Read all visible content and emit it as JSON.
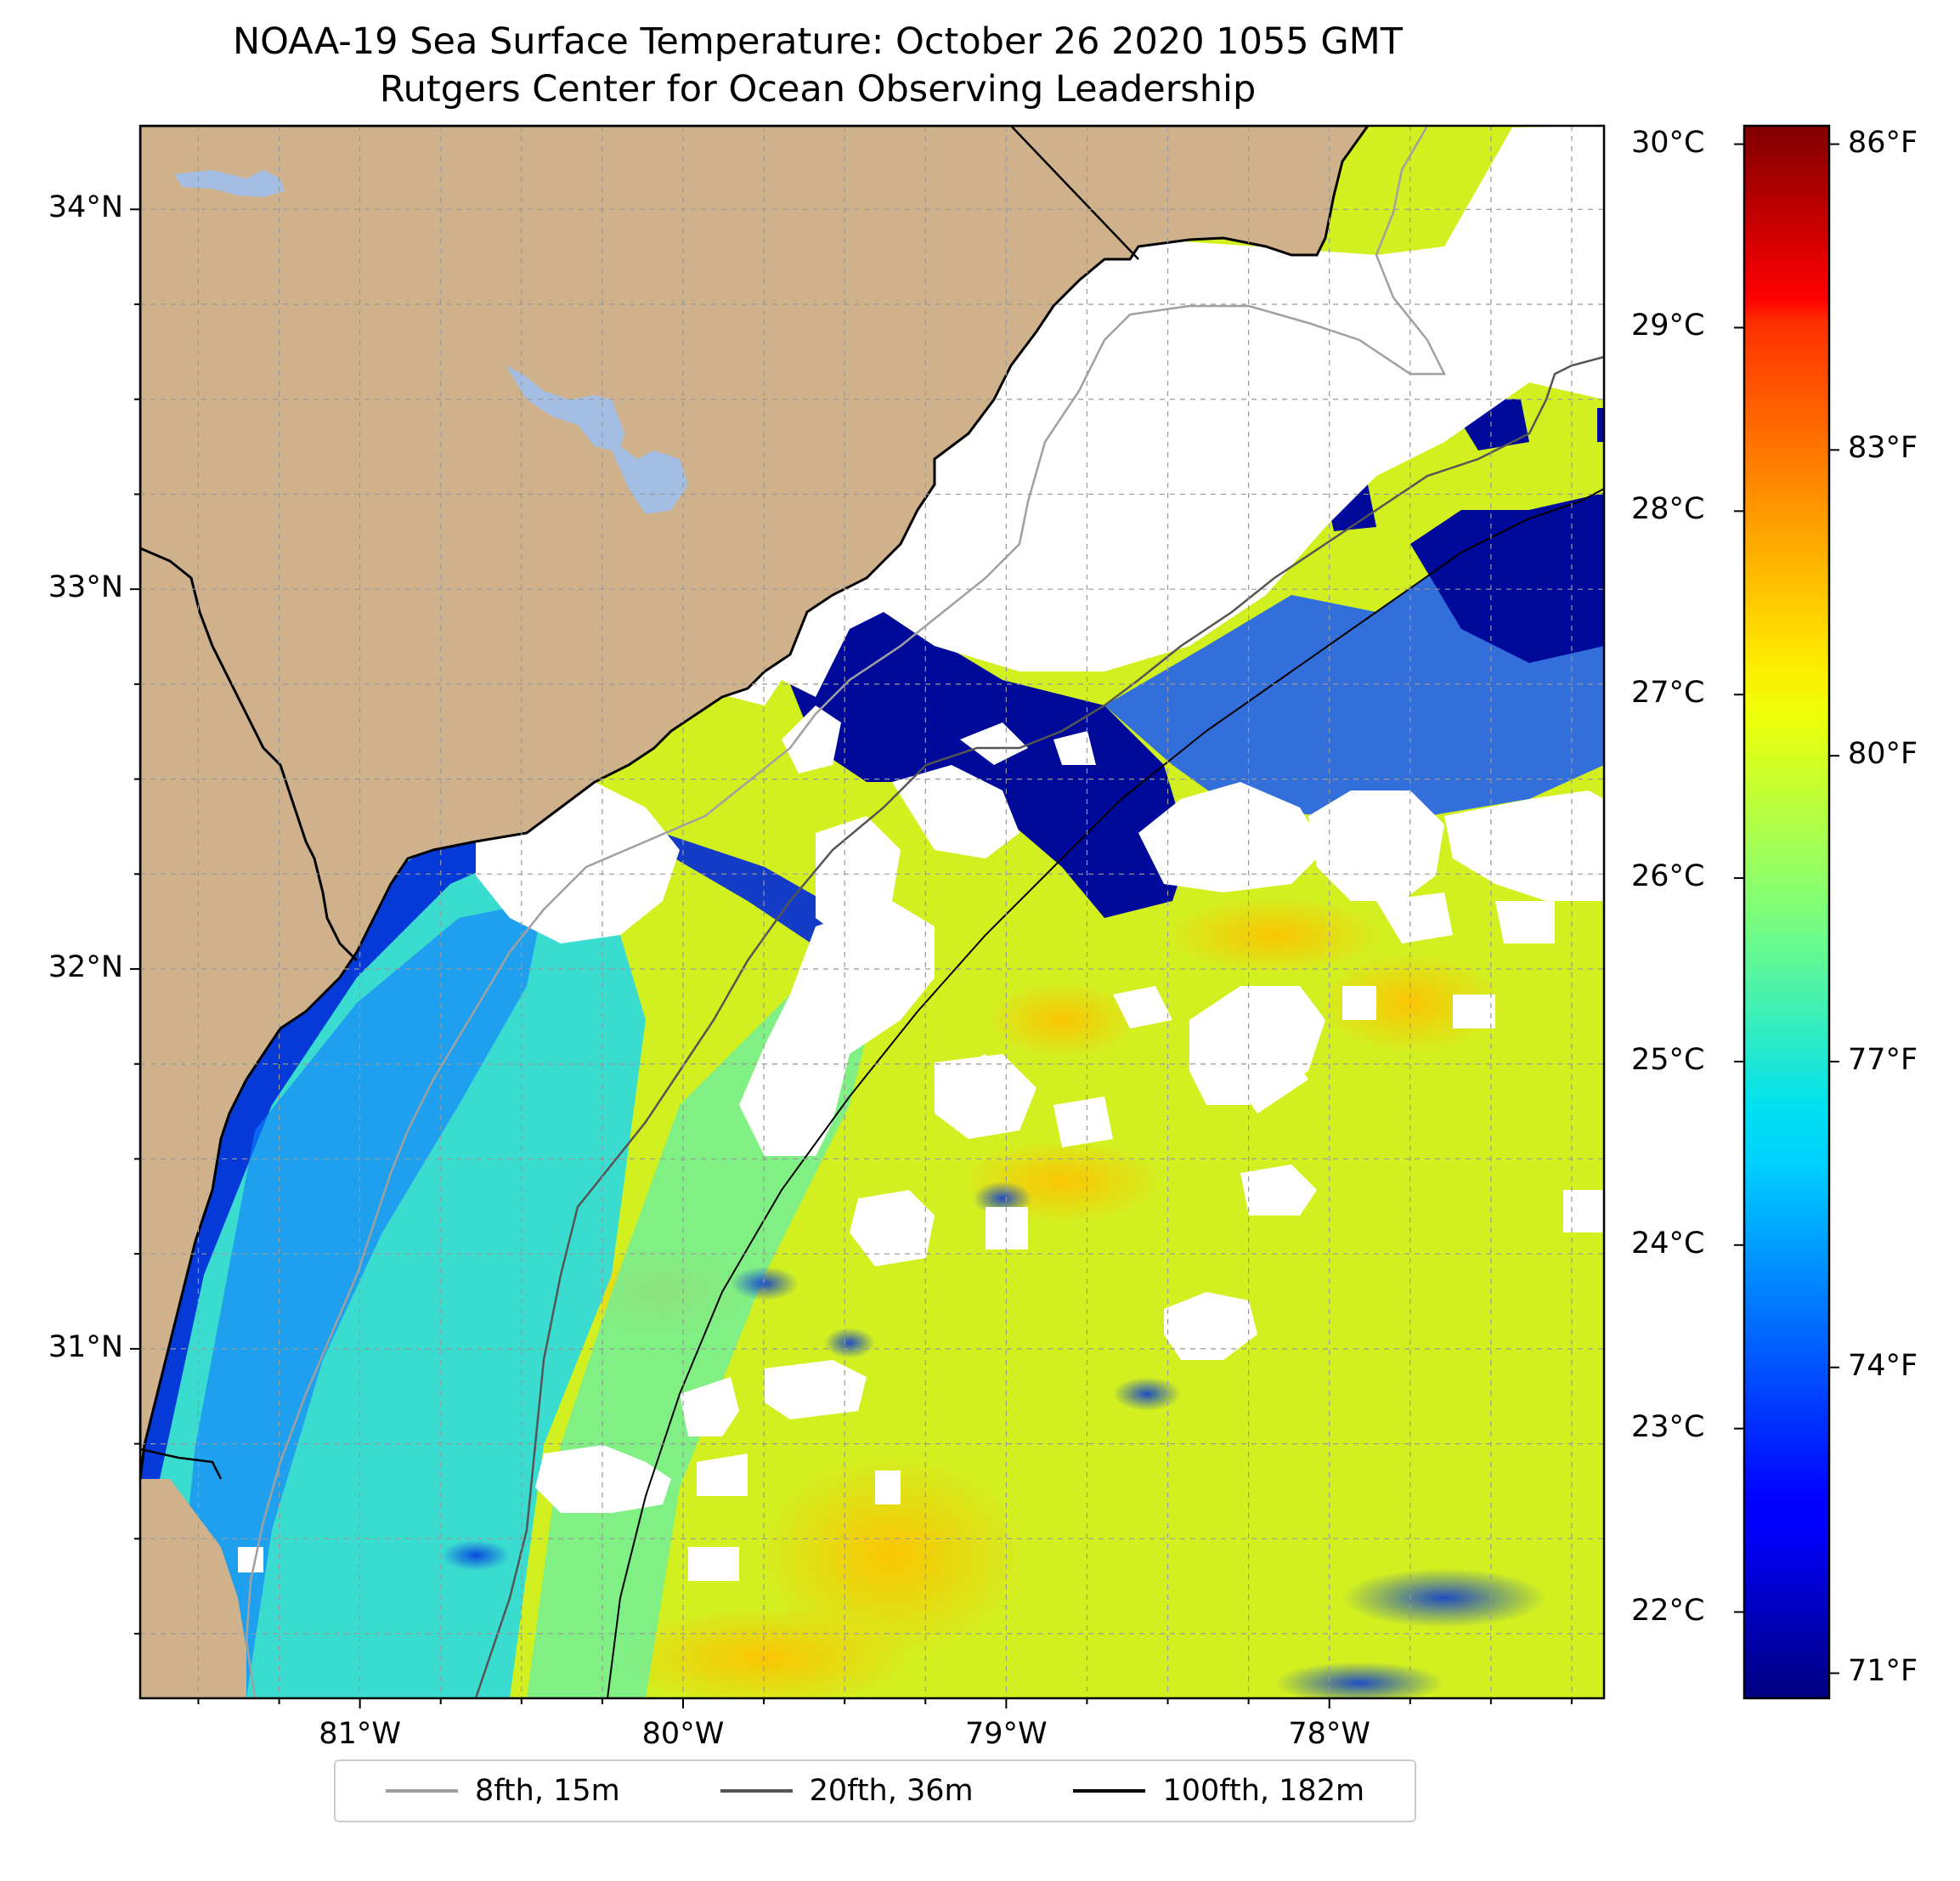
{
  "title": {
    "line1": "NOAA-19 Sea Surface Temperature: October 26 2020 1055 GMT",
    "line2": "Rutgers Center for Ocean Observing Leadership"
  },
  "map": {
    "extent": {
      "lon_min": -81.68,
      "lon_max": -77.15,
      "lat_min": 30.08,
      "lat_max": 34.22
    },
    "lat_ticks": [
      {
        "value": 34,
        "label": "34°N"
      },
      {
        "value": 33,
        "label": "33°N"
      },
      {
        "value": 32,
        "label": "32°N"
      },
      {
        "value": 31,
        "label": "31°N"
      }
    ],
    "lon_ticks": [
      {
        "value": -81,
        "label": "81°W"
      },
      {
        "value": -80,
        "label": "80°W"
      },
      {
        "value": -79,
        "label": "79°W"
      },
      {
        "value": -78,
        "label": "78°W"
      }
    ],
    "gridlines": "dashed",
    "colors": {
      "land": "#cfb28c",
      "lakes": "#a4bde3",
      "cloud_mask": "#ffffff"
    }
  },
  "colorbar": {
    "colormap": "jet",
    "celsius_ticks": [
      "30°C",
      "29°C",
      "28°C",
      "27°C",
      "26°C",
      "25°C",
      "24°C",
      "23°C",
      "22°C"
    ],
    "fahrenheit_ticks": [
      "86°F",
      "83°F",
      "80°F",
      "77°F",
      "74°F",
      "71°F"
    ]
  },
  "legend": [
    {
      "label": "8fth, 15m",
      "color": "#a0a0a0"
    },
    {
      "label": "20fth, 36m",
      "color": "#555555"
    },
    {
      "label": "100fth, 182m",
      "color": "#000000"
    }
  ]
}
